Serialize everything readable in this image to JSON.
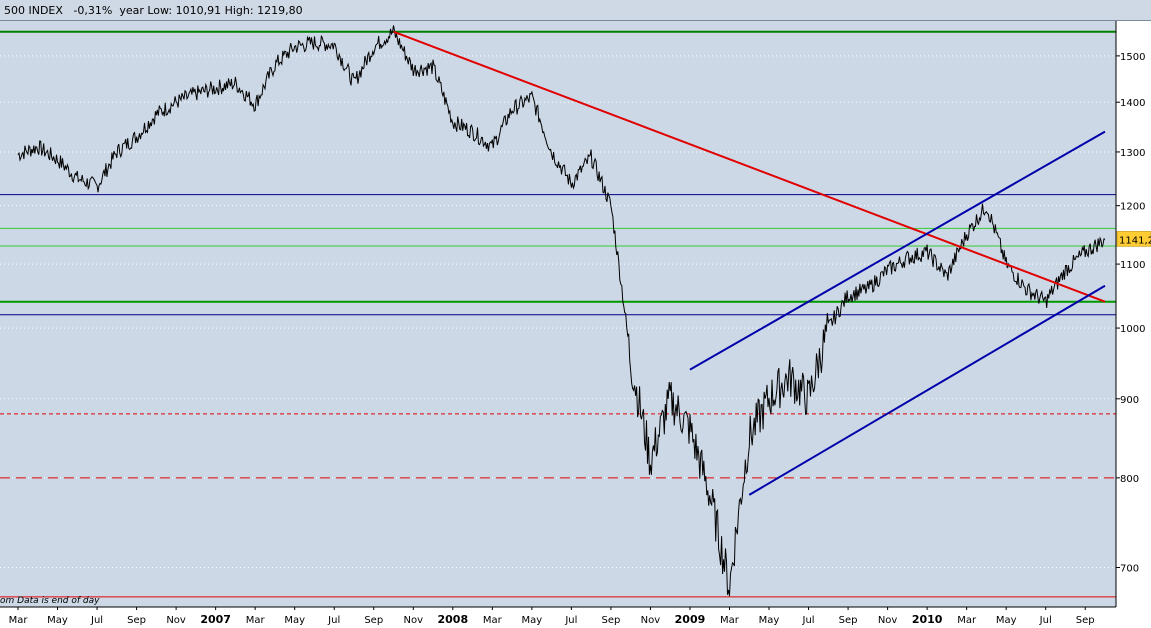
{
  "header": {
    "title": "500 INDEX   -0,31%  year Low: 1010,91 High: 1219,80"
  },
  "footnote": "om  Data is end of day",
  "last_price_label": "1141,2",
  "chart_data": {
    "type": "line",
    "series": [
      {
        "values_monthly": [
          {
            "x": "2006-03",
            "y": 1295
          },
          {
            "x": "2006-04",
            "y": 1310
          },
          {
            "x": "2006-05",
            "y": 1285
          },
          {
            "x": "2006-06",
            "y": 1250
          },
          {
            "x": "2006-07",
            "y": 1235
          },
          {
            "x": "2006-08",
            "y": 1300
          },
          {
            "x": "2006-09",
            "y": 1330
          },
          {
            "x": "2006-10",
            "y": 1375
          },
          {
            "x": "2006-11",
            "y": 1400
          },
          {
            "x": "2006-12",
            "y": 1418
          },
          {
            "x": "2007-01",
            "y": 1430
          },
          {
            "x": "2007-02",
            "y": 1440
          },
          {
            "x": "2007-03",
            "y": 1395
          },
          {
            "x": "2007-04",
            "y": 1480
          },
          {
            "x": "2007-05",
            "y": 1520
          },
          {
            "x": "2007-06",
            "y": 1530
          },
          {
            "x": "2007-07",
            "y": 1525
          },
          {
            "x": "2007-08",
            "y": 1440
          },
          {
            "x": "2007-09",
            "y": 1520
          },
          {
            "x": "2007-10",
            "y": 1555
          },
          {
            "x": "2007-11",
            "y": 1470
          },
          {
            "x": "2007-12",
            "y": 1475
          },
          {
            "x": "2008-01",
            "y": 1360
          },
          {
            "x": "2008-02",
            "y": 1340
          },
          {
            "x": "2008-03",
            "y": 1310
          },
          {
            "x": "2008-04",
            "y": 1385
          },
          {
            "x": "2008-05",
            "y": 1410
          },
          {
            "x": "2008-06",
            "y": 1300
          },
          {
            "x": "2008-07",
            "y": 1240
          },
          {
            "x": "2008-08",
            "y": 1290
          },
          {
            "x": "2008-09",
            "y": 1200
          },
          {
            "x": "2008-10",
            "y": 950
          },
          {
            "x": "2008-11",
            "y": 820
          },
          {
            "x": "2008-12",
            "y": 900
          },
          {
            "x": "2009-01",
            "y": 860
          },
          {
            "x": "2009-02",
            "y": 780
          },
          {
            "x": "2009-03",
            "y": 680
          },
          {
            "x": "2009-04",
            "y": 850
          },
          {
            "x": "2009-05",
            "y": 900
          },
          {
            "x": "2009-06",
            "y": 930
          },
          {
            "x": "2009-07",
            "y": 900
          },
          {
            "x": "2009-08",
            "y": 1000
          },
          {
            "x": "2009-09",
            "y": 1050
          },
          {
            "x": "2009-10",
            "y": 1060
          },
          {
            "x": "2009-11",
            "y": 1090
          },
          {
            "x": "2009-12",
            "y": 1110
          },
          {
            "x": "2010-01",
            "y": 1120
          },
          {
            "x": "2010-02",
            "y": 1080
          },
          {
            "x": "2010-03",
            "y": 1150
          },
          {
            "x": "2010-04",
            "y": 1200
          },
          {
            "x": "2010-05",
            "y": 1100
          },
          {
            "x": "2010-06",
            "y": 1060
          },
          {
            "x": "2010-07",
            "y": 1040
          },
          {
            "x": "2010-08",
            "y": 1090
          },
          {
            "x": "2010-09",
            "y": 1120
          },
          {
            "x": "2010-10",
            "y": 1141.2
          }
        ],
        "color": "#000000"
      }
    ],
    "x_ticks": [
      {
        "label": "Mar",
        "bold": false
      },
      {
        "label": "May",
        "bold": false
      },
      {
        "label": "Jul",
        "bold": false
      },
      {
        "label": "Sep",
        "bold": false
      },
      {
        "label": "Nov",
        "bold": false
      },
      {
        "label": "2007",
        "bold": true
      },
      {
        "label": "Mar",
        "bold": false
      },
      {
        "label": "May",
        "bold": false
      },
      {
        "label": "Jul",
        "bold": false
      },
      {
        "label": "Sep",
        "bold": false
      },
      {
        "label": "Nov",
        "bold": false
      },
      {
        "label": "2008",
        "bold": true
      },
      {
        "label": "Mar",
        "bold": false
      },
      {
        "label": "May",
        "bold": false
      },
      {
        "label": "Jul",
        "bold": false
      },
      {
        "label": "Sep",
        "bold": false
      },
      {
        "label": "Nov",
        "bold": false
      },
      {
        "label": "2009",
        "bold": true
      },
      {
        "label": "Mar",
        "bold": false
      },
      {
        "label": "May",
        "bold": false
      },
      {
        "label": "Jul",
        "bold": false
      },
      {
        "label": "Sep",
        "bold": false
      },
      {
        "label": "Nov",
        "bold": false
      },
      {
        "label": "2010",
        "bold": true
      },
      {
        "label": "Mar",
        "bold": false
      },
      {
        "label": "May",
        "bold": false
      },
      {
        "label": "Jul",
        "bold": false
      },
      {
        "label": "Sep",
        "bold": false
      }
    ],
    "y_ticks": [
      700,
      800,
      900,
      1000,
      1100,
      1200,
      1300,
      1400,
      1500
    ],
    "ylim": [
      660,
      1580
    ],
    "y_scale": "log",
    "horizontal_lines": [
      {
        "y": 1555,
        "color": "#008000",
        "style": "solid",
        "weight": "thick"
      },
      {
        "y": 1220,
        "color": "#00008b",
        "style": "solid",
        "weight": "thin"
      },
      {
        "y": 1160,
        "color": "#33cc33",
        "style": "solid",
        "weight": "thin"
      },
      {
        "y": 1130,
        "color": "#33cc33",
        "style": "solid",
        "weight": "thin"
      },
      {
        "y": 1040,
        "color": "#009900",
        "style": "solid",
        "weight": "thick"
      },
      {
        "y": 1020,
        "color": "#00008b",
        "style": "solid",
        "weight": "thin"
      },
      {
        "y": 880,
        "color": "#dd0000",
        "style": "dashed-fine",
        "weight": "thin"
      },
      {
        "y": 800,
        "color": "#dd0000",
        "style": "dashed",
        "weight": "thin"
      },
      {
        "y": 670,
        "color": "#dd0000",
        "style": "solid",
        "weight": "thin"
      }
    ],
    "trend_lines": [
      {
        "from": {
          "x": "2007-10",
          "y": 1555
        },
        "to": {
          "x": "2010-10",
          "y": 1040
        },
        "color": "#e00000"
      },
      {
        "from": {
          "x": "2009-01",
          "y": 940
        },
        "to": {
          "x": "2010-10",
          "y": 1340
        },
        "color": "#0000aa"
      },
      {
        "from": {
          "x": "2009-04",
          "y": 780
        },
        "to": {
          "x": "2010-10",
          "y": 1065
        },
        "color": "#0000aa"
      }
    ],
    "grid": true,
    "background": "#cdd8e6",
    "grid_color": "#ffffff",
    "last_price_badge_color": "#ffcc33"
  }
}
